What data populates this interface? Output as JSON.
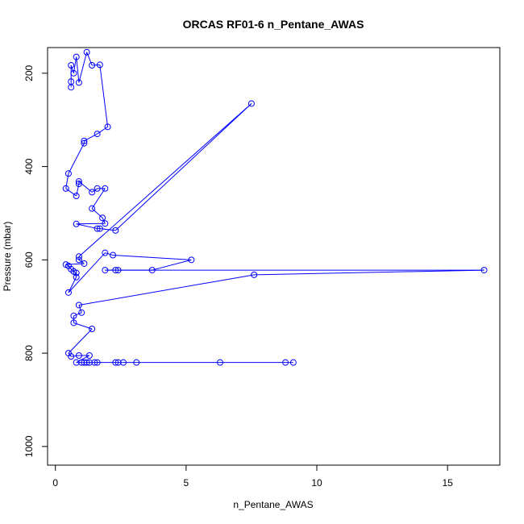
{
  "chart_data": {
    "type": "scatter",
    "title": "ORCAS RF01-6 n_Pentane_AWAS",
    "xlabel": "n_Pentane_AWAS",
    "ylabel": "Pressure (mbar)",
    "xlim": [
      -0.3,
      17
    ],
    "ylim": [
      1040,
      145
    ],
    "y_reversed": true,
    "x_ticks": [
      0,
      5,
      10,
      15
    ],
    "y_ticks": [
      200,
      400,
      600,
      800,
      1000
    ],
    "grid": false,
    "legend": "none",
    "series_color": "#0000ff",
    "marker": "open-circle",
    "line_connected": true,
    "series": [
      {
        "points": [
          [
            0.6,
            230
          ],
          [
            0.6,
            218
          ],
          [
            0.6,
            183
          ],
          [
            0.7,
            200
          ],
          [
            0.8,
            165
          ],
          [
            0.9,
            220
          ],
          [
            1.2,
            155
          ],
          [
            1.4,
            183
          ],
          [
            1.7,
            182
          ],
          [
            2.0,
            315
          ],
          [
            1.6,
            330
          ],
          [
            1.1,
            345
          ],
          [
            1.1,
            350
          ],
          [
            0.5,
            415
          ],
          [
            0.4,
            447
          ],
          [
            0.8,
            463
          ],
          [
            0.9,
            437
          ],
          [
            0.9,
            432
          ],
          [
            1.4,
            455
          ],
          [
            1.6,
            447
          ],
          [
            1.9,
            447
          ],
          [
            1.4,
            490
          ],
          [
            1.8,
            510
          ],
          [
            1.9,
            522
          ],
          [
            0.8,
            523
          ],
          [
            1.6,
            533
          ],
          [
            1.7,
            533
          ],
          [
            2.3,
            537
          ],
          [
            7.5,
            265
          ],
          [
            0.9,
            593
          ],
          [
            0.9,
            600
          ],
          [
            1.1,
            608
          ],
          [
            0.4,
            610
          ],
          [
            0.5,
            613
          ],
          [
            0.6,
            620
          ],
          [
            0.7,
            625
          ],
          [
            0.8,
            628
          ],
          [
            0.8,
            637
          ],
          [
            0.5,
            670
          ],
          [
            1.9,
            585
          ],
          [
            2.2,
            590
          ],
          [
            5.2,
            600
          ],
          [
            3.7,
            622
          ],
          [
            1.9,
            622
          ],
          [
            2.3,
            622
          ],
          [
            2.4,
            622
          ],
          [
            16.4,
            622
          ],
          [
            7.6,
            632
          ],
          [
            0.9,
            697
          ],
          [
            1.0,
            713
          ],
          [
            0.7,
            720
          ],
          [
            0.7,
            735
          ],
          [
            1.4,
            748
          ],
          [
            0.5,
            800
          ],
          [
            0.6,
            807
          ],
          [
            0.9,
            805
          ],
          [
            1.3,
            805
          ],
          [
            0.8,
            820
          ],
          [
            1.0,
            820
          ],
          [
            1.1,
            820
          ],
          [
            1.2,
            820
          ],
          [
            1.3,
            820
          ],
          [
            1.5,
            820
          ],
          [
            1.6,
            820
          ],
          [
            2.3,
            820
          ],
          [
            2.4,
            820
          ],
          [
            2.6,
            820
          ],
          [
            3.1,
            820
          ],
          [
            6.3,
            820
          ],
          [
            8.8,
            820
          ],
          [
            9.1,
            820
          ]
        ]
      }
    ]
  }
}
